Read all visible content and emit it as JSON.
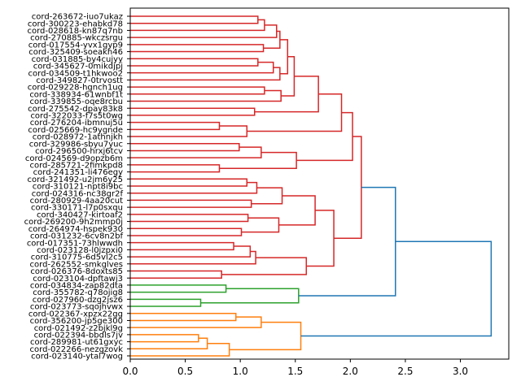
{
  "chart_data": {
    "type": "dendrogram",
    "orientation": "left",
    "title": "",
    "xlabel": "",
    "ylabel": "",
    "xlim": [
      0,
      3.44
    ],
    "xticks": [
      0.0,
      0.5,
      1.0,
      1.5,
      2.0,
      2.5,
      3.0
    ],
    "xtick_labels": [
      "0.0",
      "0.5",
      "1.0",
      "1.5",
      "2.0",
      "2.5",
      "3.0"
    ],
    "grid": false,
    "colors": {
      "red": "#d62728",
      "green": "#2ca02c",
      "orange": "#ff7f0e",
      "blue": "#1f77b4"
    },
    "leaves": [
      "cord-263672-iuo7ukaz",
      "cord-300223-ehabkd78",
      "cord-028618-kn87q7nb",
      "cord-270885-wkczsrgu",
      "cord-017554-yvx1gyp9",
      "cord-325409-soeakh46",
      "cord-031885-by4cujyy",
      "cord-345627-0mikdjpj",
      "cord-034509-t1hkwoo2",
      "cord-349827-0trvostt",
      "cord-029228-hgnch1ug",
      "cord-338934-61wnbf1t",
      "cord-339855-oqe8rcbu",
      "cord-275542-dpay83k8",
      "cord-322033-f7s5t0wg",
      "cord-276204-ibmnuj5u",
      "cord-025669-hc9ygnde",
      "cord-028972-1athnjkh",
      "cord-329986-sbyu7yuc",
      "cord-296500-hrxj6tcv",
      "cord-024569-d9opzb6m",
      "cord-285721-2fimkpd8",
      "cord-241351-li476egy",
      "cord-321492-u2jm6y25",
      "cord-310121-npt8i9bc",
      "cord-024316-nc38gr2f",
      "cord-280929-4aa20cut",
      "cord-330171-l7p0sxqu",
      "cord-340427-kirtoaf2",
      "cord-269200-9h2mmp0j",
      "cord-264974-hspek930",
      "cord-031232-6cv8n2bf",
      "cord-017351-73hlwwdh",
      "cord-023128-l0jzpxi0",
      "cord-310775-6d5vl2c5",
      "cord-262552-smkglves",
      "cord-026376-8doxts85",
      "cord-023104-dpftawj3",
      "cord-034834-zap82dta",
      "cord-355782-q78ojig8",
      "cord-027960-dzg2jsz6",
      "cord-023773-sqojhvwx",
      "cord-022367-xpzx22gg",
      "cord-356200-jp5ge300",
      "cord-021492-z2bjkl9g",
      "cord-022394-bbdls7jv",
      "cord-289981-ut61gxyc",
      "cord-022266-nezgzovk",
      "cord-023140-ytal7wog"
    ],
    "merges": [
      [
        0,
        1,
        1.16,
        "red"
      ],
      [
        49,
        2,
        1.22,
        "red"
      ],
      [
        50,
        3,
        1.33,
        "red"
      ],
      [
        4,
        5,
        1.21,
        "red"
      ],
      [
        51,
        52,
        1.36,
        "red"
      ],
      [
        6,
        7,
        1.16,
        "red"
      ],
      [
        54,
        8,
        1.3,
        "red"
      ],
      [
        55,
        9,
        1.36,
        "red"
      ],
      [
        53,
        56,
        1.43,
        "red"
      ],
      [
        10,
        11,
        1.22,
        "red"
      ],
      [
        58,
        12,
        1.37,
        "red"
      ],
      [
        57,
        59,
        1.49,
        "red"
      ],
      [
        13,
        14,
        1.13,
        "red"
      ],
      [
        60,
        61,
        1.71,
        "red"
      ],
      [
        15,
        16,
        0.81,
        "red"
      ],
      [
        63,
        17,
        1.06,
        "red"
      ],
      [
        62,
        64,
        1.92,
        "red"
      ],
      [
        18,
        19,
        0.99,
        "red"
      ],
      [
        66,
        20,
        1.19,
        "red"
      ],
      [
        21,
        22,
        0.81,
        "red"
      ],
      [
        67,
        68,
        1.51,
        "red"
      ],
      [
        65,
        69,
        2.02,
        "red"
      ],
      [
        23,
        24,
        1.06,
        "red"
      ],
      [
        71,
        25,
        1.15,
        "red"
      ],
      [
        26,
        27,
        1.1,
        "red"
      ],
      [
        72,
        73,
        1.38,
        "red"
      ],
      [
        28,
        29,
        1.07,
        "red"
      ],
      [
        30,
        31,
        1.01,
        "red"
      ],
      [
        75,
        76,
        1.35,
        "red"
      ],
      [
        74,
        77,
        1.68,
        "red"
      ],
      [
        32,
        33,
        0.94,
        "red"
      ],
      [
        79,
        34,
        1.09,
        "red"
      ],
      [
        80,
        35,
        1.14,
        "red"
      ],
      [
        36,
        37,
        0.83,
        "red"
      ],
      [
        81,
        82,
        1.6,
        "red"
      ],
      [
        78,
        83,
        1.85,
        "red"
      ],
      [
        70,
        84,
        2.1,
        "red"
      ],
      [
        38,
        39,
        0.87,
        "green"
      ],
      [
        40,
        41,
        0.64,
        "green"
      ],
      [
        86,
        87,
        1.53,
        "green"
      ],
      [
        42,
        43,
        0.96,
        "orange"
      ],
      [
        89,
        44,
        1.19,
        "orange"
      ],
      [
        45,
        46,
        0.62,
        "orange"
      ],
      [
        91,
        47,
        0.7,
        "orange"
      ],
      [
        92,
        48,
        0.9,
        "orange"
      ],
      [
        90,
        93,
        1.55,
        "orange"
      ],
      [
        85,
        88,
        2.41,
        "blue"
      ],
      [
        95,
        94,
        3.28,
        "blue"
      ]
    ]
  }
}
